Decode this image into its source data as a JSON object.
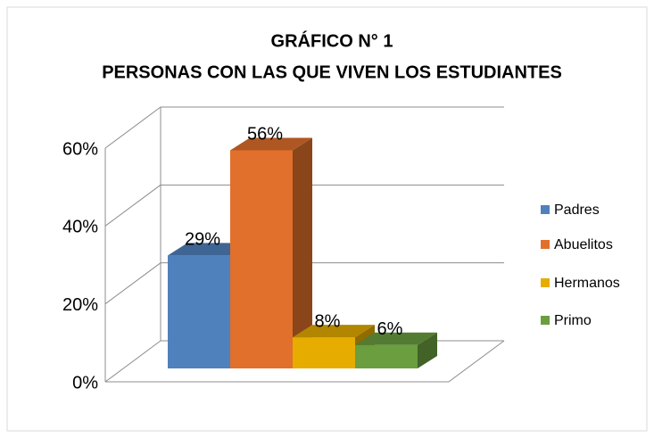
{
  "chart_data": {
    "type": "bar",
    "title": "GRÁFICO N° 1",
    "subtitle": "PERSONAS CON LAS QUE VIVEN LOS ESTUDIANTES",
    "series": [
      {
        "name": "Padres",
        "color": "#4f81bd",
        "values": [
          29
        ],
        "value_labels": [
          "29%"
        ]
      },
      {
        "name": "Abuelitos",
        "color": "#e0702c",
        "values": [
          56
        ],
        "value_labels": [
          "56%"
        ]
      },
      {
        "name": "Hermanos",
        "color": "#e6ac00",
        "values": [
          8
        ],
        "value_labels": [
          "8%"
        ]
      },
      {
        "name": "Primo",
        "color": "#6a9e3f",
        "values": [
          6
        ],
        "value_labels": [
          "6%"
        ]
      }
    ],
    "ylim": [
      0,
      60
    ],
    "yticks": [
      {
        "value": 0,
        "label": "0%"
      },
      {
        "value": 20,
        "label": "20%"
      },
      {
        "value": 40,
        "label": "40%"
      },
      {
        "value": 60,
        "label": "60%"
      }
    ],
    "grid": true,
    "legend": "right"
  }
}
